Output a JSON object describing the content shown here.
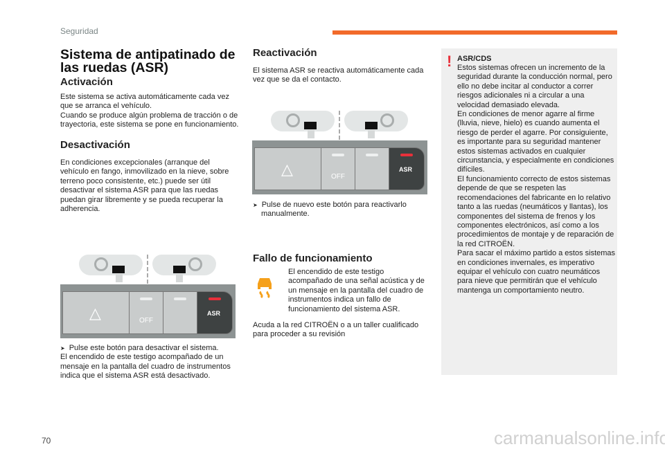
{
  "header": {
    "section": "Seguridad",
    "accent": "#f26a2a"
  },
  "title": "Sistema de antipatinado de las ruedas (ASR)",
  "activacion": {
    "heading": "Activación",
    "text": "Este sistema se activa automáticamente cada vez que se arranca el vehículo.\nCuando se produce algún problema de tracción o de trayectoria, este sistema se pone en funcionamiento."
  },
  "desactivacion": {
    "heading": "Desactivación",
    "text": "En condiciones excepcionales (arranque del vehículo en fango, inmovilizado en la nieve, sobre terreno poco consistente, etc.) puede ser útil desactivar el sistema ASR para que las ruedas puedan girar libremente y se pueda recuperar la adherencia.",
    "bullet": "Pulse este botón para desactivar el sistema.",
    "after": "El encendido de este testigo acompañado de un mensaje en la pantalla del cuadro de instrumentos indica que el sistema ASR está desactivado."
  },
  "panel": {
    "off_label": "OFF",
    "asr_label": "ASR",
    "led_on": "#e8303a"
  },
  "reactivacion": {
    "heading": "Reactivación",
    "text": "El sistema ASR se reactiva automáticamente cada vez que se da el contacto.",
    "bullet": "Pulse de nuevo este botón para reactivarlo manualmente."
  },
  "fallo": {
    "heading": "Fallo de funcionamiento",
    "text": "El encendido de este testigo acompañado de una señal acústica y de un mensaje en la pantalla del cuadro de instrumentos indica un fallo de funcionamiento del sistema ASR.",
    "after": "Acuda a la red CITROËN o a un taller cualificado para proceder a su revisión",
    "icon": "skidding-car-warning-icon",
    "icon_color": "#f5a01a"
  },
  "warning": {
    "title": "ASR/CDS",
    "text": "Estos sistemas ofrecen un incremento de la seguridad durante la conducción normal, pero ello no debe incitar al conductor a correr riesgos adicionales ni a circular a una velocidad demasiado elevada.\nEn condiciones de menor agarre al firme (lluvia, nieve, hielo) es cuando aumenta el riesgo de perder el agarre. Por consiguiente, es importante para su seguridad mantener estos sistemas activados en cualquier circunstancia, y especialmente en condiciones difíciles.\nEl funcionamiento correcto de estos sistemas depende de que se respeten las recomendaciones del fabricante en lo relativo tanto a las ruedas (neumáticos y llantas), los componentes del sistema de frenos y los componentes electrónicos, así como a los procedimientos de montaje y de reparación de la red CITROËN.\nPara sacar el máximo partido a estos sistemas en condiciones invernales, es imperativo equipar el vehículo con cuatro neumáticos para nieve que permitirán que el vehículo mantenga un comportamiento neutro.",
    "icon_color": "#e8303a"
  },
  "footer": {
    "page_number": "70",
    "watermark": "carmanualsonline.info"
  }
}
